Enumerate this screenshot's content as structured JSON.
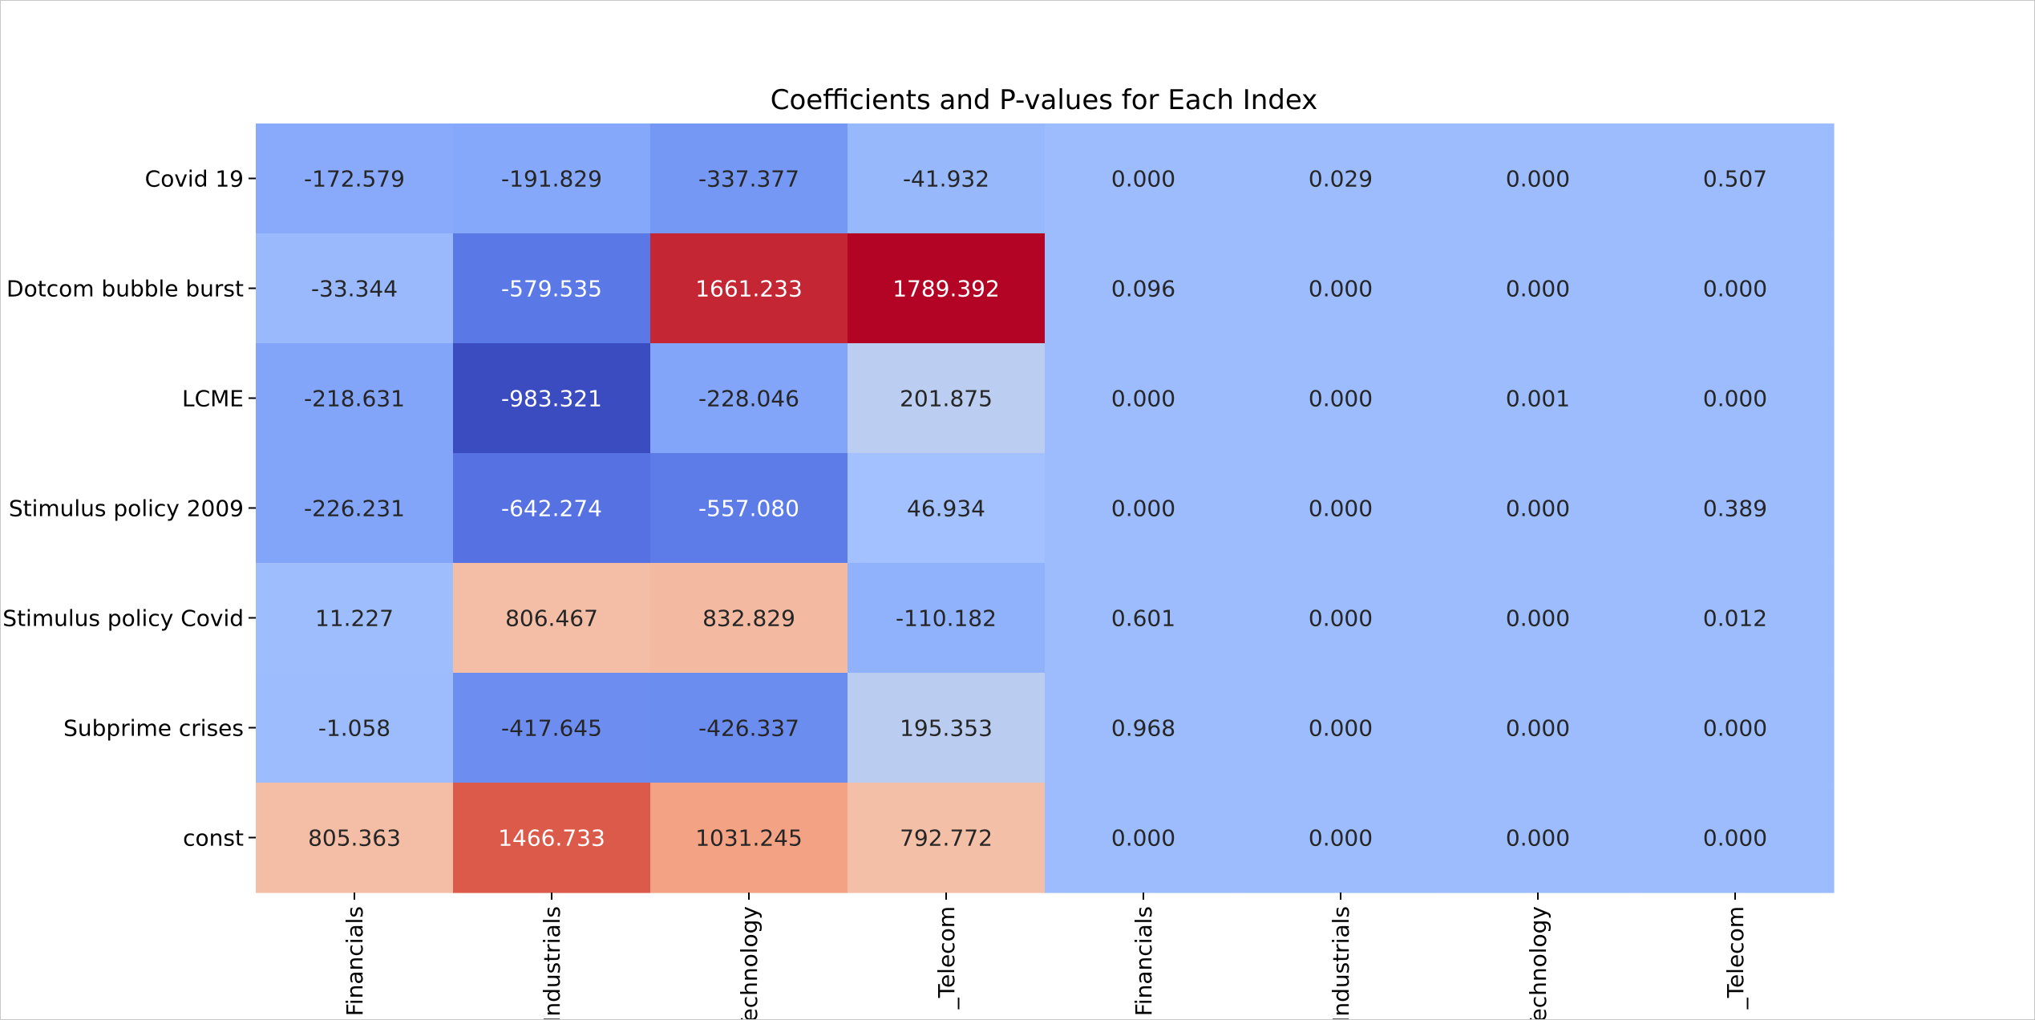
{
  "chart_data": {
    "type": "heatmap",
    "title": "Coefficients and P-values for Each Index",
    "colormap": "coolwarm",
    "rows": [
      "Covid 19",
      "Dotcom bubble burst",
      "LCME",
      "Stimulus policy 2009",
      "Stimulus policy Covid",
      "Subprime crises",
      "const"
    ],
    "columns": [
      "Financials",
      "Industrials",
      "Technology",
      "_Telecom",
      "Financials",
      "Industrials",
      "Technology",
      "_Telecom"
    ],
    "values": [
      [
        "-172.579",
        "-191.829",
        "-337.377",
        "-41.932",
        "0.000",
        "0.029",
        "0.000",
        "0.507"
      ],
      [
        "-33.344",
        "-579.535",
        "1661.233",
        "1789.392",
        "0.096",
        "0.000",
        "0.000",
        "0.000"
      ],
      [
        "-218.631",
        "-983.321",
        "-228.046",
        "201.875",
        "0.000",
        "0.000",
        "0.001",
        "0.000"
      ],
      [
        "-226.231",
        "-642.274",
        "-557.080",
        "46.934",
        "0.000",
        "0.000",
        "0.000",
        "0.389"
      ],
      [
        "11.227",
        "806.467",
        "832.829",
        "-110.182",
        "0.601",
        "0.000",
        "0.000",
        "0.012"
      ],
      [
        "-1.058",
        "-417.645",
        "-426.337",
        "195.353",
        "0.968",
        "0.000",
        "0.000",
        "0.000"
      ],
      [
        "805.363",
        "1466.733",
        "1031.245",
        "792.772",
        "0.000",
        "0.000",
        "0.000",
        "0.000"
      ]
    ],
    "color_range": [
      -983.321,
      1789.392
    ],
    "grid": false,
    "legend": "none"
  }
}
